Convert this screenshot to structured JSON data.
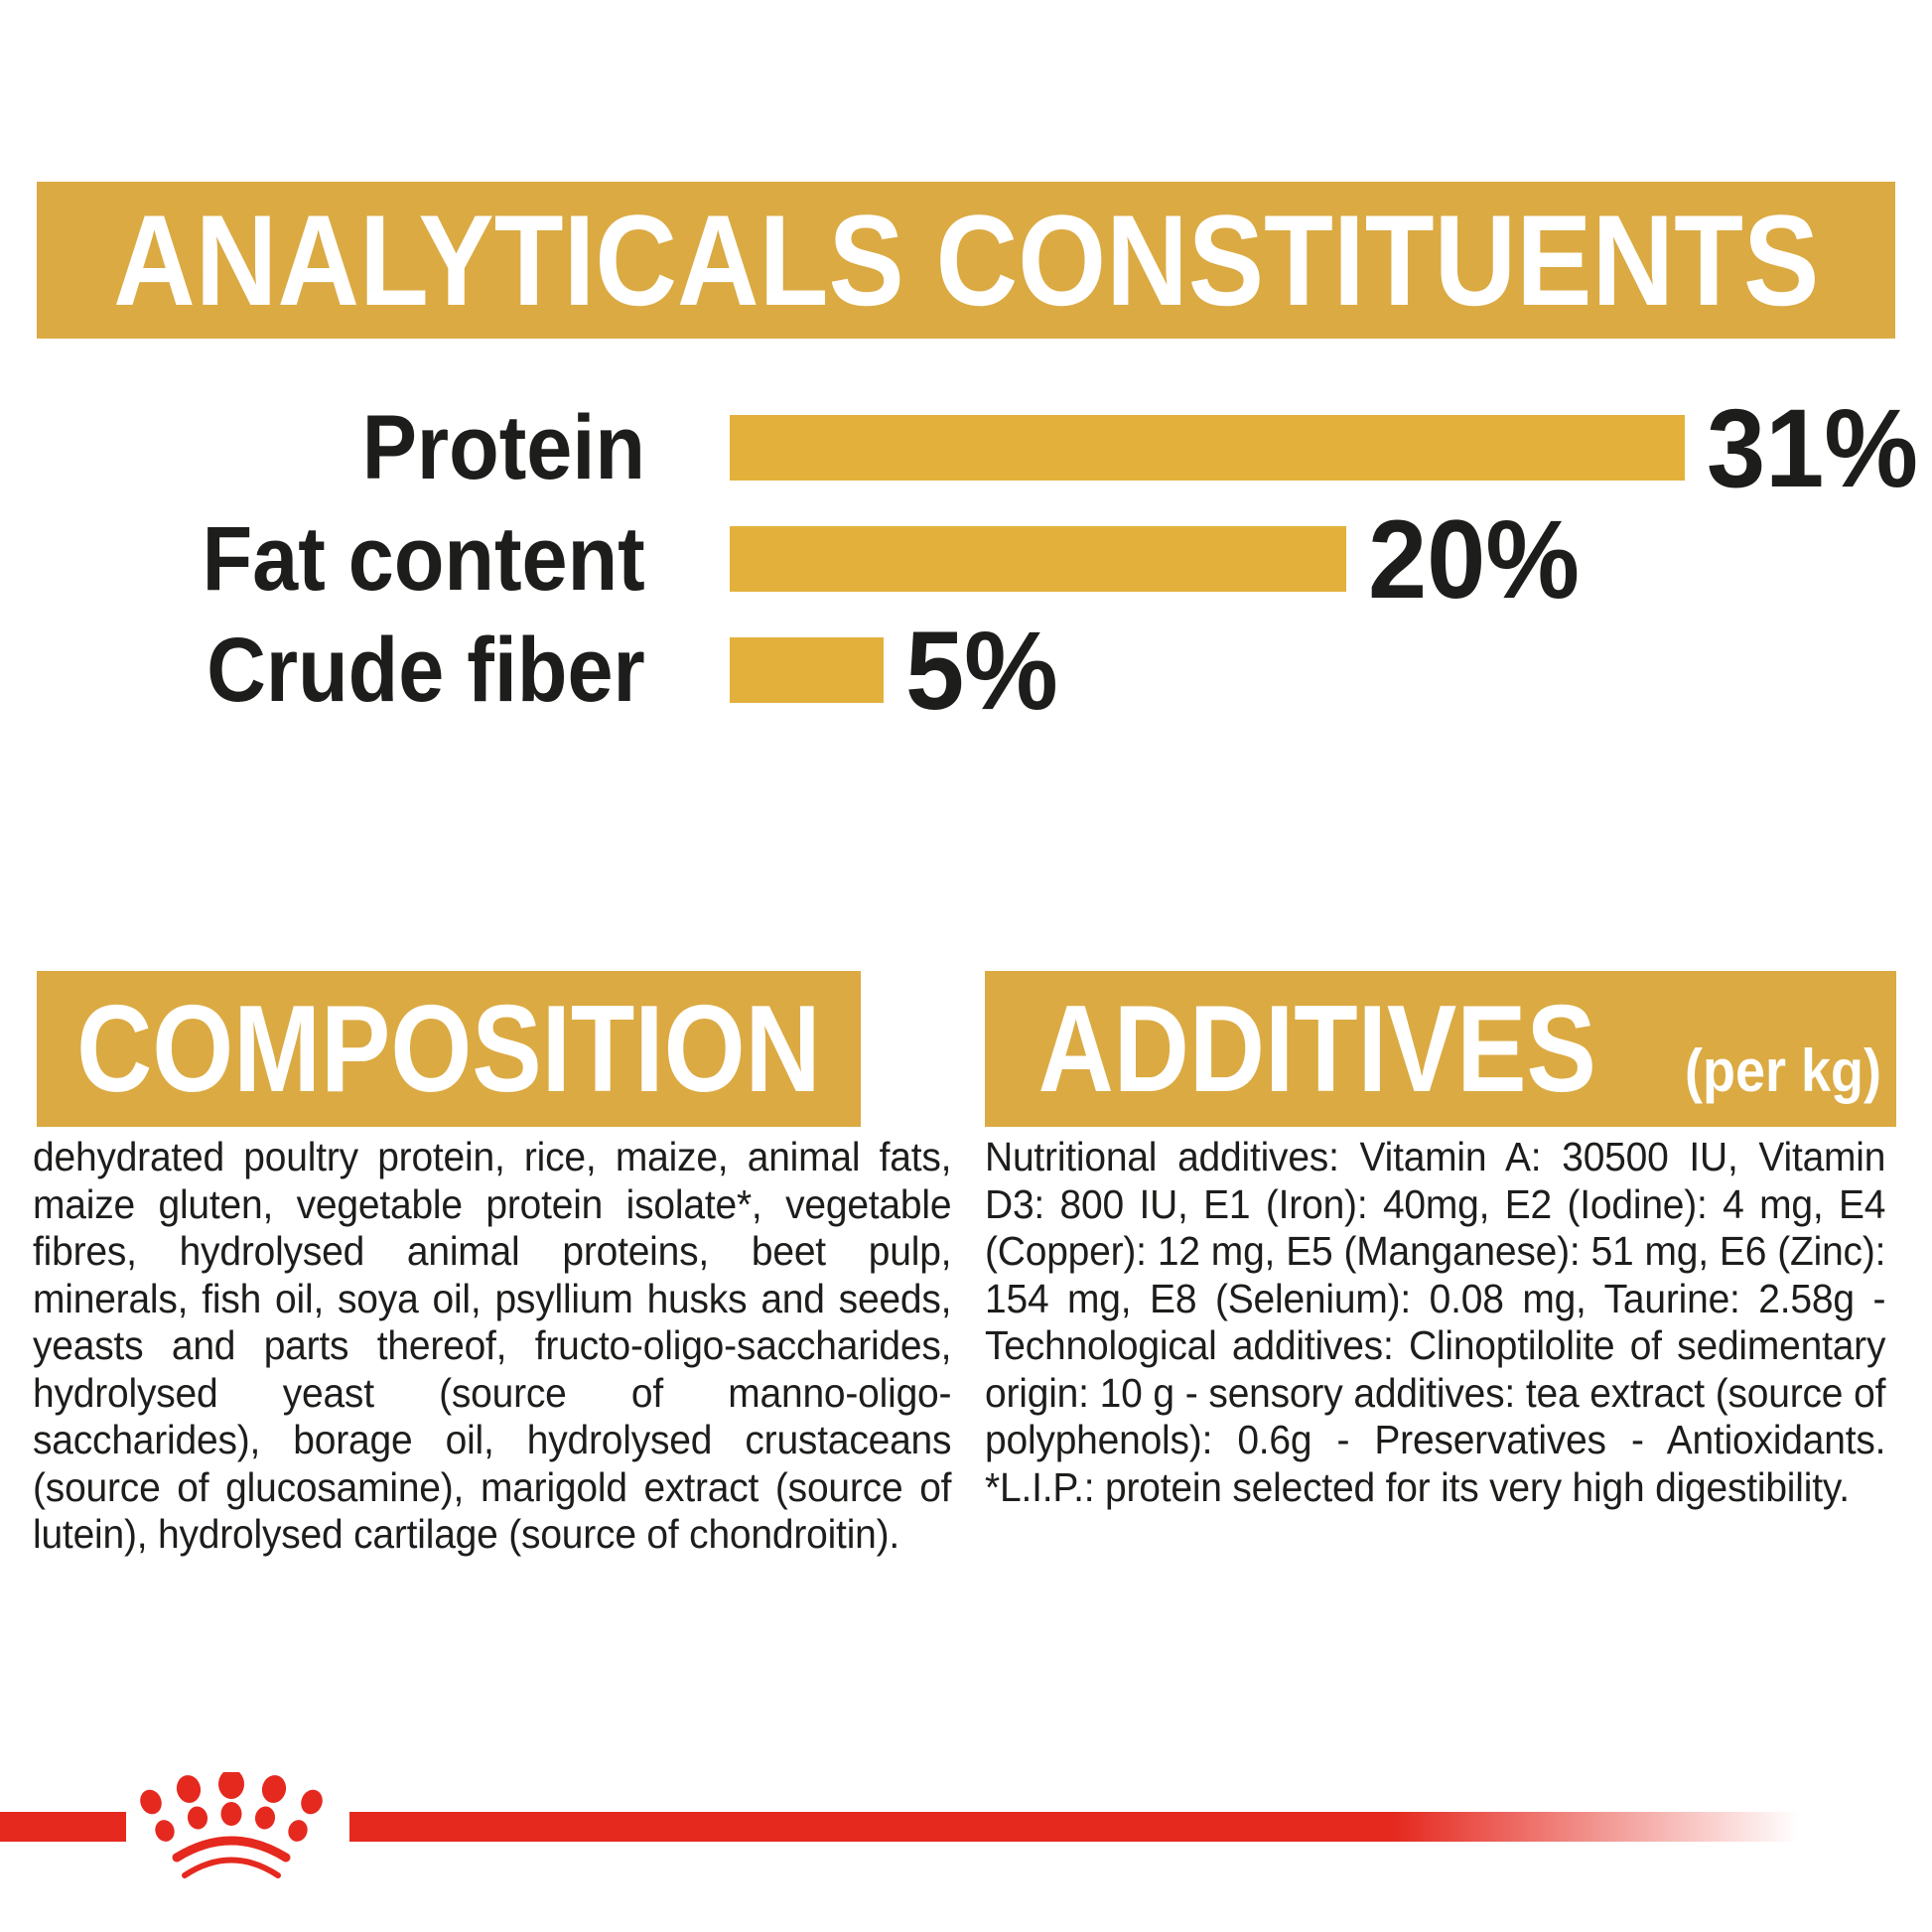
{
  "header_banner": {
    "text": "ANALYTICALS CONSTITUENTS",
    "bg": "#DBAA43",
    "text_color": "#FFFFFF"
  },
  "chart_data": {
    "type": "bar",
    "orientation": "horizontal",
    "title": "ANALYTICALS CONSTITUENTS",
    "categories": [
      "Protein",
      "Fat content",
      "Crude fiber"
    ],
    "values": [
      31,
      20,
      5
    ],
    "value_labels": [
      "31%",
      "20%",
      "5%"
    ],
    "unit": "%",
    "xlim": [
      0,
      31
    ],
    "grid": false,
    "legend": false,
    "bar_color": "#E3B13B",
    "label_color": "#1D1D1B"
  },
  "sections": {
    "composition": {
      "title": "COMPOSITION",
      "body": "dehydrated poultry protein, rice, maize, animal fats, maize gluten, vegetable protein isolate*, vegetable fibres, hydrolysed animal proteins, beet pulp, minerals, fish oil, soya oil, psyllium husks and seeds, yeasts and parts thereof, fructo-oligo-saccharides, hydrolysed yeast (source of manno-oligo-saccharides), borage oil, hydrolysed crustaceans (source of glucosamine), marigold extract (source of lutein), hydrolysed cartilage (source of chondroitin)."
    },
    "additives": {
      "title": "ADDITIVES",
      "title_suffix": "(per kg)",
      "body": "Nutritional additives: Vitamin A: 30500 IU, Vitamin D3: 800 IU, E1 (Iron): 40mg, E2 (Iodine): 4 mg, E4 (Copper): 12 mg, E5 (Manganese): 51 mg, E6 (Zinc): 154 mg, E8 (Selenium): 0.08 mg, Taurine: 2.58g - Technological additives: Clinoptilolite of sedimentary origin: 10 g - sensory additives: tea extract (source of polyphenols): 0.6g - Preservatives - Antioxidants. *L.I.P.: protein selected for its very high digestibility."
    }
  },
  "footer": {
    "brand_mark": "royal-canin-crown",
    "band_color": "#E5291F"
  },
  "colors": {
    "gold_banner": "#DBAA43",
    "gold_bar": "#E3B13B",
    "red": "#E5291F",
    "text": "#1D1D1B",
    "background": "#FFFFFF"
  }
}
